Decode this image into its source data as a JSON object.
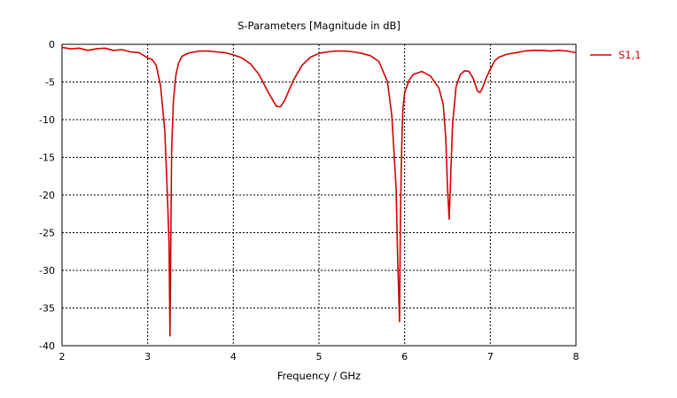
{
  "chart_data": {
    "type": "line",
    "title": "S-Parameters [Magnitude in dB]",
    "xlabel": "Frequency / GHz",
    "ylabel": "",
    "xlim": [
      2,
      8
    ],
    "ylim": [
      -40,
      0
    ],
    "xticks": [
      2,
      3,
      4,
      5,
      6,
      7,
      8
    ],
    "yticks": [
      0,
      -5,
      -10,
      -15,
      -20,
      -25,
      -30,
      -35,
      -40
    ],
    "grid": true,
    "legend_position": "right",
    "series": [
      {
        "name": "S1,1",
        "color": "#d40000",
        "x": [
          2.0,
          2.1,
          2.2,
          2.3,
          2.4,
          2.5,
          2.6,
          2.7,
          2.8,
          2.9,
          3.0,
          3.05,
          3.1,
          3.15,
          3.2,
          3.23,
          3.25,
          3.26,
          3.27,
          3.28,
          3.3,
          3.33,
          3.36,
          3.4,
          3.45,
          3.5,
          3.6,
          3.7,
          3.8,
          3.9,
          4.0,
          4.1,
          4.2,
          4.3,
          4.4,
          4.5,
          4.55,
          4.6,
          4.7,
          4.8,
          4.9,
          5.0,
          5.1,
          5.2,
          5.3,
          5.4,
          5.5,
          5.6,
          5.7,
          5.8,
          5.85,
          5.9,
          5.92,
          5.94,
          5.95,
          5.96,
          5.97,
          5.98,
          6.0,
          6.05,
          6.1,
          6.2,
          6.3,
          6.4,
          6.45,
          6.48,
          6.5,
          6.52,
          6.54,
          6.56,
          6.6,
          6.65,
          6.7,
          6.75,
          6.8,
          6.85,
          6.88,
          6.9,
          6.95,
          7.0,
          7.05,
          7.1,
          7.2,
          7.3,
          7.4,
          7.5,
          7.6,
          7.7,
          7.8,
          7.9,
          8.0
        ],
        "y": [
          -0.4,
          -0.6,
          -0.5,
          -0.8,
          -0.6,
          -0.5,
          -0.8,
          -0.7,
          -1.0,
          -1.1,
          -1.8,
          -2.0,
          -2.8,
          -5.5,
          -11.5,
          -20.0,
          -26.5,
          -38.7,
          -25.5,
          -14.0,
          -7.5,
          -4.0,
          -2.5,
          -1.6,
          -1.3,
          -1.1,
          -0.9,
          -0.9,
          -1.0,
          -1.1,
          -1.4,
          -1.8,
          -2.6,
          -4.0,
          -6.2,
          -8.2,
          -8.3,
          -7.4,
          -4.8,
          -2.8,
          -1.7,
          -1.2,
          -1.0,
          -0.9,
          -0.9,
          -1.0,
          -1.2,
          -1.5,
          -2.3,
          -5.0,
          -9.5,
          -19.0,
          -29.0,
          -36.8,
          -24.0,
          -16.5,
          -11.5,
          -8.5,
          -6.4,
          -4.8,
          -4.0,
          -3.6,
          -4.2,
          -5.8,
          -8.0,
          -12.5,
          -19.0,
          -23.2,
          -16.5,
          -10.5,
          -5.6,
          -4.0,
          -3.5,
          -3.6,
          -4.5,
          -6.2,
          -6.4,
          -6.0,
          -4.5,
          -3.3,
          -2.2,
          -1.7,
          -1.3,
          -1.1,
          -0.9,
          -0.8,
          -0.8,
          -0.9,
          -0.8,
          -0.9,
          -1.1
        ]
      }
    ]
  }
}
